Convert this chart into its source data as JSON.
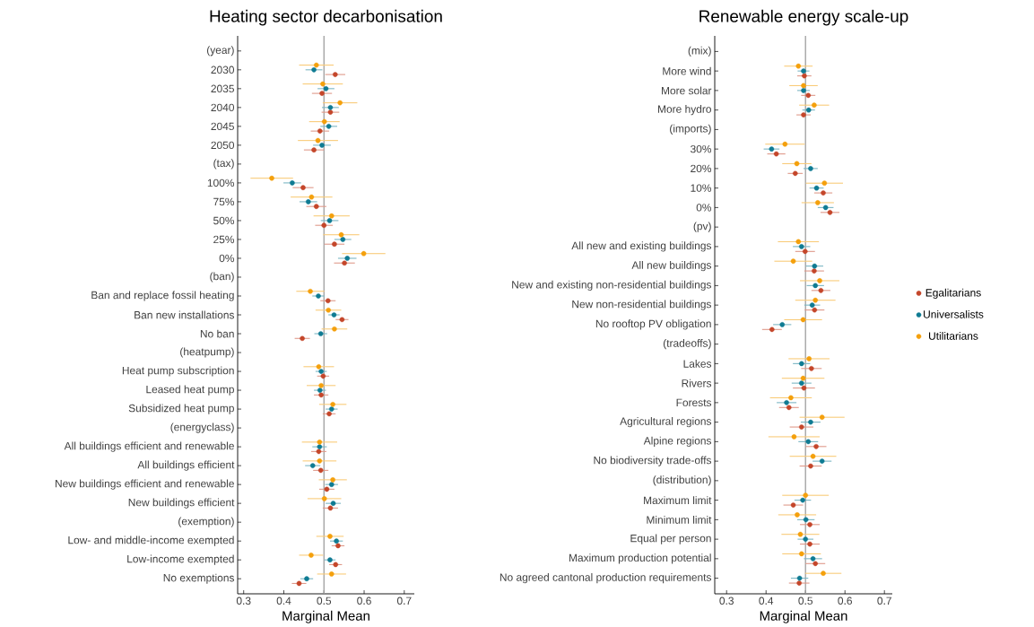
{
  "chart_data": [
    {
      "type": "scatter",
      "orientation": "horizontal",
      "title": "Heating sector decarbonisation",
      "xlabel": "Marginal Mean",
      "xlim": [
        0.285,
        0.725
      ],
      "xticks": [
        0.3,
        0.4,
        0.5,
        0.6,
        0.7
      ],
      "marker": "circle",
      "categories": [
        "(year)",
        "2030",
        "2035",
        "2040",
        "2045",
        "2050",
        "(tax)",
        "100%",
        "75%",
        "50%",
        "25%",
        "0%",
        "(ban)",
        "Ban and replace fossil heating",
        "Ban new installations",
        "No ban",
        "(heatpump)",
        "Heat pump subscription",
        "Leased heat pump",
        "Subsidized heat pump",
        "(energyclass)",
        "All buildings efficient and renewable",
        "All buildings efficient",
        "New buildings efficient and renewable",
        "New buildings efficient",
        "(exemption)",
        "Low- and middle-income exempted",
        "Low-income exempted",
        "No exemptions"
      ],
      "ref_lines": [
        {
          "axis": "x",
          "value": 0.5,
          "color": "#9e9e9e"
        }
      ],
      "series": [
        {
          "color": "#c4462a",
          "values": [
            null,
            0.528,
            0.495,
            0.516,
            0.49,
            0.475,
            null,
            0.448,
            0.481,
            0.5,
            0.526,
            0.551,
            null,
            0.51,
            0.545,
            0.446,
            null,
            0.498,
            0.493,
            0.513,
            null,
            0.487,
            0.492,
            0.507,
            0.516,
            null,
            0.535,
            0.529,
            0.438
          ],
          "errors": [
            null,
            0.025,
            0.025,
            0.022,
            0.023,
            0.025,
            null,
            0.026,
            0.025,
            0.022,
            0.025,
            0.026,
            null,
            0.019,
            0.016,
            0.019,
            null,
            0.015,
            0.018,
            0.016,
            null,
            0.019,
            0.019,
            0.019,
            0.019,
            null,
            0.016,
            0.016,
            0.018
          ]
        },
        {
          "color": "#0f7b93",
          "values": [
            null,
            0.475,
            0.505,
            0.516,
            0.512,
            0.495,
            null,
            0.421,
            0.461,
            0.514,
            0.547,
            0.558,
            null,
            0.486,
            0.525,
            0.492,
            null,
            0.493,
            0.49,
            0.519,
            null,
            0.489,
            0.472,
            0.519,
            0.523,
            null,
            0.531,
            0.515,
            0.457
          ],
          "errors": [
            null,
            0.021,
            0.021,
            0.021,
            0.021,
            0.022,
            null,
            0.022,
            0.022,
            0.022,
            0.021,
            0.023,
            null,
            0.015,
            0.014,
            0.016,
            null,
            0.014,
            0.015,
            0.015,
            null,
            0.018,
            0.019,
            0.016,
            0.019,
            null,
            0.016,
            0.014,
            0.016
          ]
        },
        {
          "color": "#f4a00c",
          "values": [
            null,
            0.481,
            0.497,
            0.54,
            0.501,
            0.485,
            null,
            0.37,
            0.469,
            0.519,
            0.543,
            0.599,
            null,
            0.466,
            0.511,
            0.526,
            null,
            0.487,
            0.493,
            0.522,
            null,
            0.489,
            0.489,
            0.522,
            0.501,
            null,
            0.515,
            0.468,
            0.519
          ],
          "errors": [
            null,
            0.043,
            0.05,
            0.043,
            0.038,
            0.05,
            null,
            0.053,
            0.052,
            0.045,
            0.045,
            0.054,
            null,
            0.035,
            0.032,
            0.032,
            null,
            0.038,
            0.036,
            0.034,
            null,
            0.044,
            0.042,
            0.035,
            0.042,
            null,
            0.034,
            0.03,
            0.036
          ]
        }
      ]
    },
    {
      "type": "scatter",
      "orientation": "horizontal",
      "title": "Renewable energy scale-up",
      "xlabel": "Marginal Mean",
      "xlim": [
        0.27,
        0.72
      ],
      "xticks": [
        0.3,
        0.4,
        0.5,
        0.6,
        0.7
      ],
      "marker": "circle",
      "legend": "right",
      "categories": [
        "(mix)",
        "More wind",
        "More solar",
        "More hydro",
        "(imports)",
        "30%",
        "20%",
        "10%",
        "0%",
        "(pv)",
        "All new and existing buildings",
        "All new buildings",
        "New and existing non-residential buildings",
        "New non-residential buildings",
        "No rooftop PV obligation",
        "(tradeoffs)",
        "Lakes",
        "Rivers",
        "Forests",
        "Agricultural regions",
        "Alpine regions",
        "No biodiversity trade-offs",
        "(distribution)",
        "Maximum limit",
        "Minimum limit",
        "Equal per person",
        "Maximum production potential",
        "No agreed cantonal production requirements"
      ],
      "ref_lines": [
        {
          "axis": "x",
          "value": 0.5,
          "color": "#9e9e9e"
        }
      ],
      "series": [
        {
          "name": "Egalitarians",
          "color": "#c4462a",
          "values": [
            null,
            0.497,
            0.507,
            0.495,
            null,
            0.426,
            0.474,
            0.545,
            0.562,
            null,
            0.499,
            0.522,
            0.539,
            0.523,
            0.415,
            null,
            0.515,
            0.496,
            0.458,
            0.49,
            0.527,
            0.513,
            null,
            0.469,
            0.511,
            0.511,
            0.525,
            0.484
          ],
          "errors": [
            null,
            0.018,
            0.018,
            0.018,
            null,
            0.023,
            0.019,
            0.023,
            0.024,
            null,
            0.025,
            0.025,
            0.024,
            0.025,
            0.025,
            null,
            0.026,
            0.028,
            0.025,
            0.03,
            0.026,
            0.028,
            null,
            0.025,
            0.025,
            0.025,
            0.025,
            0.026
          ]
        },
        {
          "name": "Universalists",
          "color": "#0f7b93",
          "values": [
            null,
            0.495,
            0.495,
            0.508,
            null,
            0.414,
            0.513,
            0.528,
            0.551,
            null,
            0.49,
            0.523,
            0.525,
            0.517,
            0.441,
            null,
            0.49,
            0.49,
            0.452,
            0.513,
            0.507,
            0.542,
            null,
            0.493,
            0.501,
            0.5,
            0.519,
            0.485
          ],
          "errors": [
            null,
            0.015,
            0.016,
            0.016,
            null,
            0.02,
            0.018,
            0.018,
            0.02,
            null,
            0.022,
            0.022,
            0.022,
            0.02,
            0.023,
            null,
            0.022,
            0.025,
            0.025,
            0.025,
            0.025,
            0.024,
            null,
            0.021,
            0.022,
            0.02,
            0.023,
            0.022
          ]
        },
        {
          "name": "Utilitarians",
          "color": "#f4a00c",
          "values": [
            null,
            0.482,
            0.495,
            0.522,
            null,
            0.448,
            0.478,
            0.548,
            0.531,
            null,
            0.482,
            0.469,
            0.536,
            0.525,
            0.494,
            null,
            0.509,
            0.494,
            0.463,
            0.542,
            0.471,
            0.519,
            null,
            0.5,
            0.479,
            0.487,
            0.49,
            0.545
          ],
          "errors": [
            null,
            0.036,
            0.036,
            0.038,
            null,
            0.05,
            0.037,
            0.047,
            0.041,
            null,
            0.052,
            0.048,
            0.05,
            0.051,
            0.048,
            null,
            0.052,
            0.054,
            0.053,
            0.057,
            0.065,
            0.059,
            null,
            0.059,
            0.048,
            0.048,
            0.049,
            0.046
          ]
        }
      ]
    }
  ]
}
